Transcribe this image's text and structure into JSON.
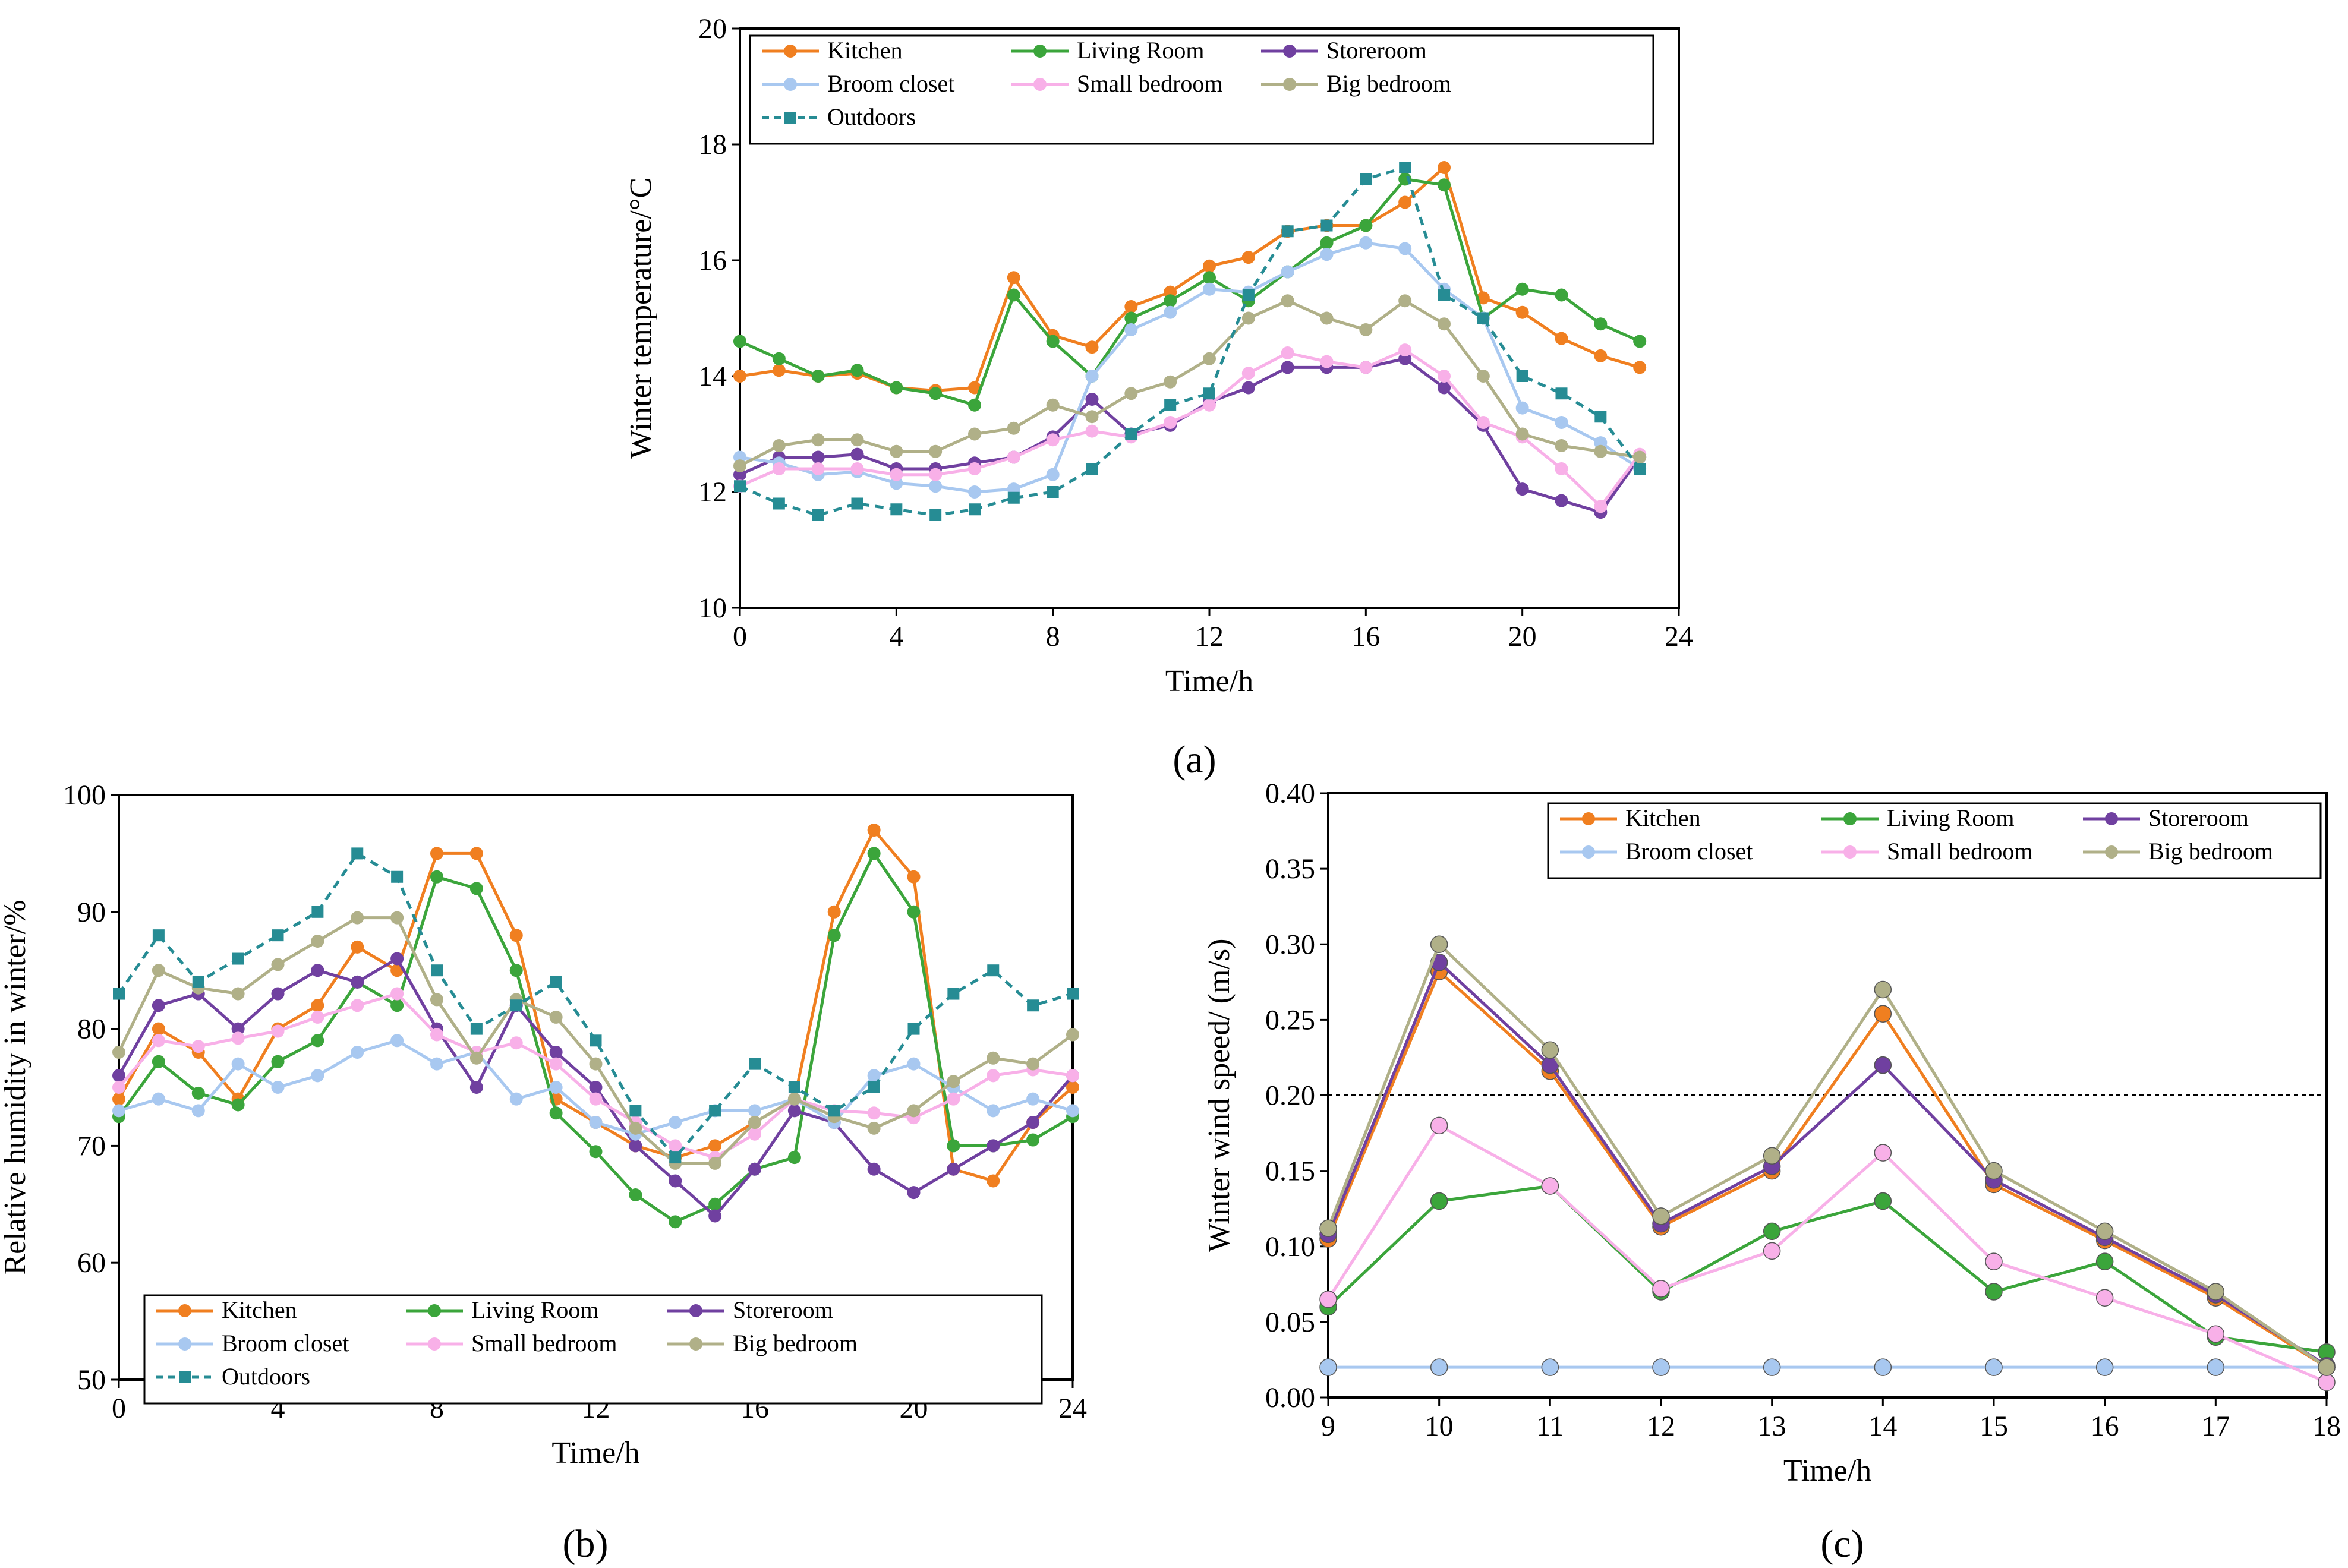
{
  "panel_labels": [
    "(a)",
    "(b)",
    "(c)"
  ],
  "colors": {
    "Kitchen": "#F07F20",
    "Living Room": "#3BA53B",
    "Storeroom": "#7040A0",
    "Broom closet": "#A8C8F0",
    "Small bedroom": "#F8B0E8",
    "Big bedroom": "#B0B088",
    "Outdoors": "#268C94"
  },
  "chart_data": [
    {
      "type": "line",
      "xlabel": "Time/h",
      "ylabel": "Winter temperature/°C",
      "xlim": [
        0,
        24
      ],
      "ylim": [
        10,
        20
      ],
      "xticks": [
        0,
        4,
        8,
        12,
        16,
        20,
        24
      ],
      "yticks": [
        10,
        12,
        14,
        16,
        18,
        20
      ],
      "legend_position": "top",
      "x": [
        0,
        1,
        2,
        3,
        4,
        5,
        6,
        7,
        8,
        9,
        10,
        11,
        12,
        13,
        14,
        15,
        16,
        17,
        18,
        19,
        20,
        21,
        22,
        23
      ],
      "series": [
        {
          "name": "Kitchen",
          "values": [
            14.0,
            14.1,
            14.0,
            14.05,
            13.8,
            13.75,
            13.8,
            15.7,
            14.7,
            14.5,
            15.2,
            15.45,
            15.9,
            16.05,
            16.5,
            16.6,
            16.6,
            17.0,
            17.6,
            15.35,
            15.1,
            14.65,
            14.35,
            14.15
          ]
        },
        {
          "name": "Living Room",
          "values": [
            14.6,
            14.3,
            14.0,
            14.1,
            13.8,
            13.7,
            13.5,
            15.4,
            14.6,
            14.0,
            15.0,
            15.3,
            15.7,
            15.3,
            15.8,
            16.3,
            16.6,
            17.4,
            17.3,
            15.0,
            15.5,
            15.4,
            14.9,
            14.6
          ]
        },
        {
          "name": "Storeroom",
          "values": [
            12.3,
            12.6,
            12.6,
            12.65,
            12.4,
            12.4,
            12.5,
            12.6,
            12.95,
            13.6,
            13.0,
            13.15,
            13.55,
            13.8,
            14.15,
            14.15,
            14.15,
            14.3,
            13.8,
            13.15,
            12.05,
            11.85,
            11.65,
            12.6
          ]
        },
        {
          "name": "Broom closet",
          "values": [
            12.6,
            12.5,
            12.3,
            12.35,
            12.15,
            12.1,
            12.0,
            12.05,
            12.3,
            14.0,
            14.8,
            15.1,
            15.5,
            15.45,
            15.8,
            16.1,
            16.3,
            16.2,
            15.5,
            15.0,
            13.45,
            13.2,
            12.85,
            12.4
          ]
        },
        {
          "name": "Small bedroom",
          "values": [
            12.1,
            12.4,
            12.4,
            12.4,
            12.3,
            12.3,
            12.4,
            12.6,
            12.9,
            13.05,
            12.95,
            13.2,
            13.5,
            14.05,
            14.4,
            14.25,
            14.15,
            14.45,
            14.0,
            13.2,
            12.95,
            12.4,
            11.75,
            12.65
          ]
        },
        {
          "name": "Big bedroom",
          "values": [
            12.45,
            12.8,
            12.9,
            12.9,
            12.7,
            12.7,
            13.0,
            13.1,
            13.5,
            13.3,
            13.7,
            13.9,
            14.3,
            15.0,
            15.3,
            15.0,
            14.8,
            15.3,
            14.9,
            14.0,
            13.0,
            12.8,
            12.7,
            12.6
          ]
        },
        {
          "name": "Outdoors",
          "values": [
            12.1,
            11.8,
            11.6,
            11.8,
            11.7,
            11.6,
            11.7,
            11.9,
            12.0,
            12.4,
            13.0,
            13.5,
            13.7,
            15.4,
            16.5,
            16.6,
            17.4,
            17.6,
            15.4,
            15.0,
            14.0,
            13.7,
            13.3,
            12.4
          ]
        }
      ]
    },
    {
      "type": "line",
      "xlabel": "Time/h",
      "ylabel": "Relative humidity in winter/%",
      "xlim": [
        0,
        24
      ],
      "ylim": [
        50,
        100
      ],
      "xticks": [
        0,
        4,
        8,
        12,
        16,
        20,
        24
      ],
      "yticks": [
        50,
        60,
        70,
        80,
        90,
        100
      ],
      "legend_position": "bottom",
      "x": [
        0,
        1,
        2,
        3,
        4,
        5,
        6,
        7,
        8,
        9,
        10,
        11,
        12,
        13,
        14,
        15,
        16,
        17,
        18,
        19,
        20,
        21,
        22,
        23,
        24
      ],
      "series": [
        {
          "name": "Kitchen",
          "values": [
            74,
            80,
            78,
            74,
            80,
            82,
            87,
            85,
            95,
            95,
            88,
            74,
            72,
            70,
            69,
            70,
            72,
            74,
            90,
            97,
            93,
            68,
            67,
            72,
            75
          ]
        },
        {
          "name": "Living Room",
          "values": [
            72.5,
            77.2,
            74.5,
            73.5,
            77.2,
            79,
            84,
            82,
            93,
            92,
            85,
            72.8,
            69.5,
            65.8,
            63.5,
            65,
            68,
            69,
            88,
            95,
            90,
            70,
            70,
            70.5,
            72.5
          ]
        },
        {
          "name": "Storeroom",
          "values": [
            76,
            82,
            83,
            80,
            83,
            85,
            84,
            86,
            80,
            75,
            82,
            78,
            75,
            70,
            67,
            64,
            68,
            73,
            72,
            68,
            66,
            68,
            70,
            72,
            76
          ]
        },
        {
          "name": "Broom closet",
          "values": [
            73,
            74,
            73,
            77,
            75,
            76,
            78,
            79,
            77,
            78,
            74,
            75,
            72,
            71,
            72,
            73,
            73,
            74,
            72,
            76,
            77,
            75,
            73,
            74,
            73
          ]
        },
        {
          "name": "Small bedroom",
          "values": [
            75,
            79,
            78.5,
            79.2,
            79.8,
            81,
            82,
            83,
            79.5,
            78,
            78.8,
            77,
            74,
            72,
            70,
            69,
            71,
            74,
            73,
            72.8,
            72.4,
            74,
            76,
            76.5,
            76
          ]
        },
        {
          "name": "Big bedroom",
          "values": [
            78,
            85,
            83.5,
            83,
            85.5,
            87.5,
            89.5,
            89.5,
            82.5,
            77.5,
            82.5,
            81,
            77,
            71.5,
            68.5,
            68.5,
            72,
            74,
            72.5,
            71.5,
            73,
            75.5,
            77.5,
            77,
            79.5
          ]
        },
        {
          "name": "Outdoors",
          "values": [
            83,
            88,
            84,
            86,
            88,
            90,
            95,
            93,
            85,
            80,
            82,
            84,
            79,
            73,
            69,
            73,
            77,
            75,
            73,
            75,
            80,
            83,
            85,
            82,
            83
          ]
        }
      ]
    },
    {
      "type": "line",
      "xlabel": "Time/h",
      "ylabel": "Winter wind speed/ (m/s)",
      "xlim": [
        9,
        18
      ],
      "ylim": [
        0,
        0.4
      ],
      "xticks": [
        9,
        10,
        11,
        12,
        13,
        14,
        15,
        16,
        17,
        18
      ],
      "yticks": [
        "0.00",
        "0.05",
        "0.10",
        "0.15",
        "0.20",
        "0.25",
        "0.30",
        "0.35",
        "0.40"
      ],
      "reference_line": 0.2,
      "legend_position": "top-right",
      "x": [
        9,
        10,
        11,
        12,
        13,
        14,
        15,
        16,
        17,
        18
      ],
      "series": [
        {
          "name": "Kitchen",
          "values": [
            0.105,
            0.282,
            0.216,
            0.113,
            0.15,
            0.254,
            0.141,
            0.104,
            0.066,
            0.02
          ]
        },
        {
          "name": "Living Room",
          "values": [
            0.06,
            0.13,
            0.14,
            0.07,
            0.11,
            0.13,
            0.07,
            0.09,
            0.04,
            0.03
          ]
        },
        {
          "name": "Storeroom",
          "values": [
            0.108,
            0.288,
            0.22,
            0.115,
            0.153,
            0.22,
            0.144,
            0.106,
            0.068,
            0.021
          ]
        },
        {
          "name": "Broom closet",
          "values": [
            0.02,
            0.02,
            0.02,
            0.02,
            0.02,
            0.02,
            0.02,
            0.02,
            0.02,
            0.02
          ]
        },
        {
          "name": "Small bedroom",
          "values": [
            0.065,
            0.18,
            0.14,
            0.072,
            0.097,
            0.162,
            0.09,
            0.066,
            0.042,
            0.01
          ]
        },
        {
          "name": "Big bedroom",
          "values": [
            0.112,
            0.3,
            0.23,
            0.12,
            0.16,
            0.27,
            0.15,
            0.11,
            0.07,
            0.02
          ]
        }
      ]
    }
  ]
}
